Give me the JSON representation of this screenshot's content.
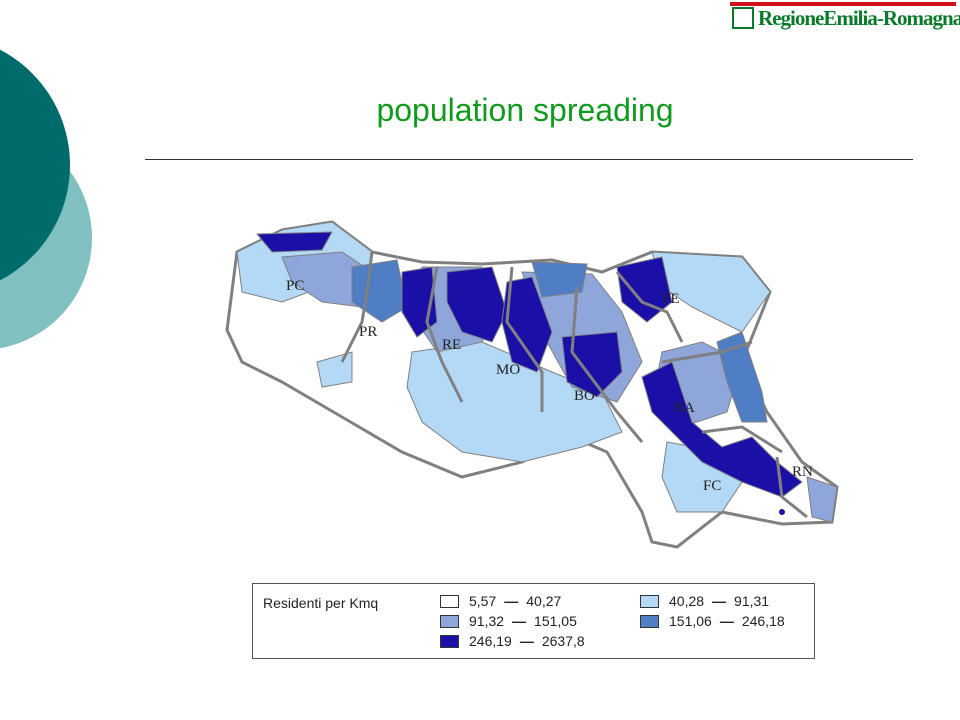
{
  "header": {
    "logo_text": "RegioneEmilia-Romagna",
    "title": "population spreading"
  },
  "map": {
    "provinces": [
      "PC",
      "PR",
      "RE",
      "MO",
      "BO",
      "FE",
      "RA",
      "FC",
      "RN"
    ],
    "colors": {
      "class1": "#ffffff",
      "class2": "#b3d9f7",
      "class3": "#8ea6d9",
      "class4": "#4f7ec4",
      "class5": "#1a10a8",
      "border": "#808080"
    }
  },
  "legend": {
    "title": "Residenti per Kmq",
    "dash": "—",
    "classes": [
      {
        "from": "5,57",
        "to": "40,27",
        "color": "#ffffff"
      },
      {
        "from": "40,28",
        "to": "91,31",
        "color": "#b3d9f7"
      },
      {
        "from": "91,32",
        "to": "151,05",
        "color": "#8ea6d9"
      },
      {
        "from": "151,06",
        "to": "246,18",
        "color": "#4f7ec4"
      },
      {
        "from": "246,19",
        "to": "2637,8",
        "color": "#1a10a8"
      }
    ]
  },
  "decoration": {
    "dark_teal": "#006b6b",
    "light_teal": "#80c0c0",
    "accent_green": "#129a1f"
  }
}
